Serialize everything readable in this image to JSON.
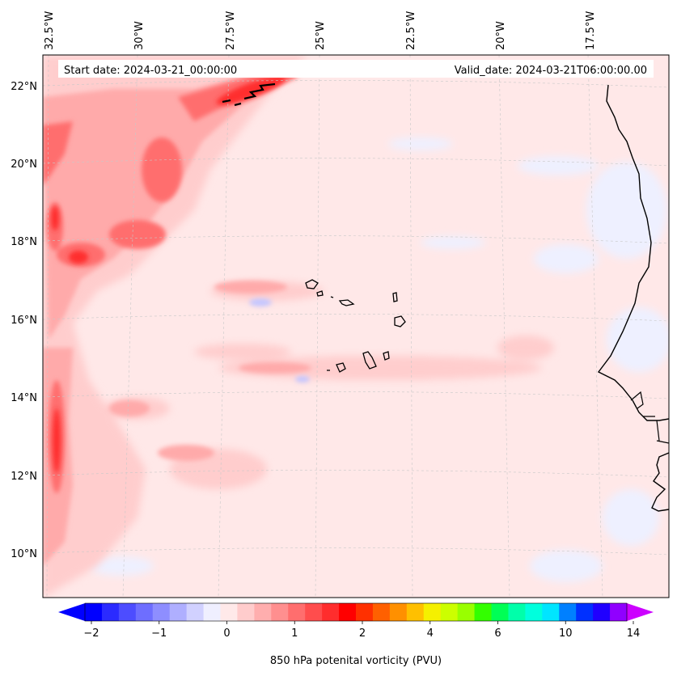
{
  "header": {
    "start_date": "Start date: 2024-03-21_00:00:00",
    "valid_date": "Valid_date: 2024-03-21T06:00:00.00"
  },
  "map": {
    "lon_labels": [
      "32.5°W",
      "30°W",
      "27.5°W",
      "25°W",
      "22.5°W",
      "20°W",
      "17.5°W"
    ],
    "lat_labels": [
      "22°N",
      "20°N",
      "18°N",
      "16°N",
      "14°N",
      "12°N",
      "10°N"
    ],
    "gridlines": true,
    "background_color": "#ffe8e8",
    "coastline_color": "#000000"
  },
  "colorbar": {
    "label": "850 hPa potenital vorticity (PVU)",
    "ticks": [
      "−2",
      "−1",
      "0",
      "1",
      "2",
      "4",
      "6",
      "10",
      "14"
    ],
    "colors": [
      "#0000ff",
      "#2b2bff",
      "#4d4dff",
      "#6e6eff",
      "#8e8eff",
      "#afafff",
      "#d1d1ff",
      "#efefff",
      "#ffe9e9",
      "#ffcccc",
      "#ffaeae",
      "#ff8f8f",
      "#ff6e6e",
      "#ff4d4d",
      "#ff2d2d",
      "#ff0000",
      "#ff3000",
      "#ff6000",
      "#ff9000",
      "#ffc000",
      "#f5f000",
      "#ccff00",
      "#99ff00",
      "#33ff00",
      "#00ff55",
      "#00ffaa",
      "#00ffdd",
      "#00e5ff",
      "#0080ff",
      "#0030ff",
      "#2000ff",
      "#9000ff"
    ],
    "extend_low": "#0000ff",
    "extend_high": "#cc00ff"
  }
}
